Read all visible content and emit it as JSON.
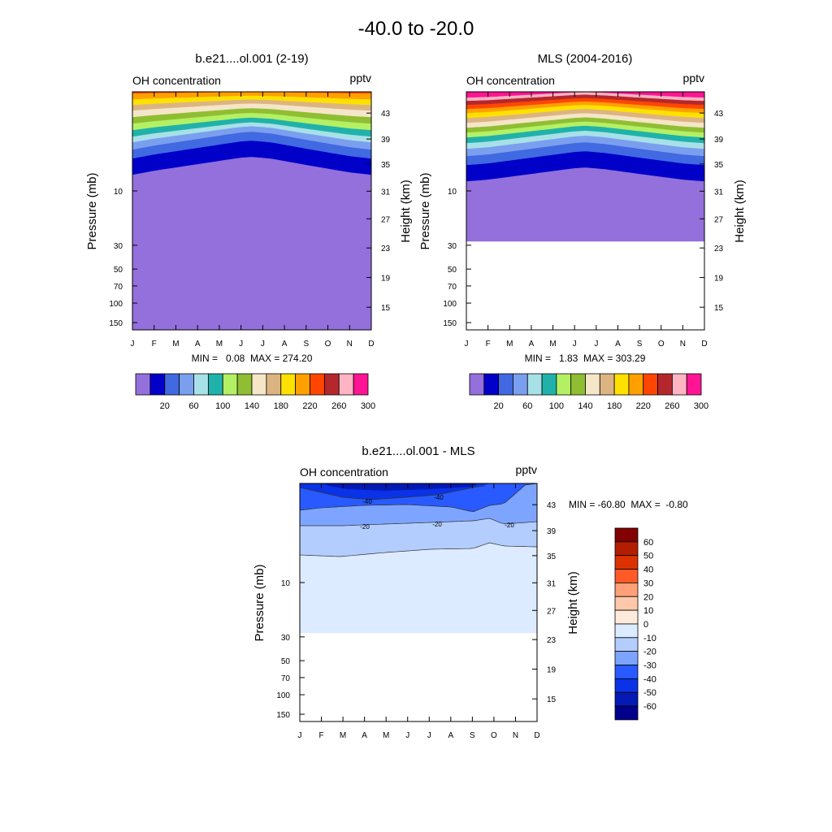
{
  "page": {
    "title": "-40.0 to -20.0"
  },
  "months": [
    "J",
    "F",
    "M",
    "A",
    "M",
    "J",
    "J",
    "A",
    "S",
    "O",
    "N",
    "D"
  ],
  "pressure_ticks": [
    "10",
    "30",
    "50",
    "70",
    "100",
    "150"
  ],
  "height_ticks": [
    "43",
    "39",
    "35",
    "31",
    "27",
    "23",
    "19",
    "15"
  ],
  "panels": {
    "left": {
      "title": "b.e21....ol.001 (2-19)",
      "left_string": "OH concentration",
      "right_string": "pptv",
      "ylabel": "Pressure (mb)",
      "y2label": "Height (km)",
      "stats": "MIN =   0.08  MAX = 274.20"
    },
    "right": {
      "title": "MLS (2004-2016)",
      "left_string": "OH concentration",
      "right_string": "pptv",
      "ylabel": "Pressure (mb)",
      "y2label": "Height (km)",
      "stats": "MIN =   1.83  MAX = 303.29"
    },
    "diff": {
      "title": "b.e21....ol.001 - MLS",
      "left_string": "OH concentration",
      "right_string": "pptv",
      "ylabel": "Pressure (mb)",
      "y2label": "Height (km)",
      "stats": "MIN = -60.80  MAX =  -0.80",
      "contour_labels": [
        "-40",
        "-40",
        "-20",
        "-20",
        "-20"
      ]
    }
  },
  "colorbar_top": {
    "labels": [
      "20",
      "60",
      "100",
      "140",
      "180",
      "220",
      "260",
      "300"
    ],
    "colors": [
      "#9370DB",
      "#0000C8",
      "#4169E1",
      "#7B9FEF",
      "#A8E0E8",
      "#20B2AA",
      "#B4F064",
      "#90BE32",
      "#F5E6C8",
      "#DCB482",
      "#FFE100",
      "#FFA000",
      "#FF4600",
      "#B4282D",
      "#FFB4C3",
      "#FF1493"
    ]
  },
  "colorbar_diff": {
    "labels": [
      "60",
      "50",
      "40",
      "30",
      "20",
      "10",
      "0",
      "-10",
      "-20",
      "-30",
      "-40",
      "-50",
      "-60"
    ],
    "colors": [
      "#820000",
      "#B41E00",
      "#DC3200",
      "#FF5A28",
      "#FFA078",
      "#FFC8AA",
      "#FFEBDC",
      "#DCEBFF",
      "#B4CDFF",
      "#7DA5FF",
      "#285AFF",
      "#0A32E6",
      "#0519B4",
      "#00008C"
    ]
  },
  "chart_data": [
    {
      "type": "heatmap",
      "title": "b.e21....ol.001 (2-19)",
      "xlabel": "",
      "ylabel": "Pressure (mb)",
      "x": [
        "J",
        "F",
        "M",
        "A",
        "M",
        "J",
        "J",
        "A",
        "S",
        "O",
        "N",
        "D"
      ],
      "levels": [
        20,
        40,
        60,
        80,
        100,
        120,
        140,
        160,
        180,
        200,
        220,
        240,
        260,
        280,
        300
      ],
      "min": 0.08,
      "max": 274.2,
      "units": "pptv"
    },
    {
      "type": "heatmap",
      "title": "MLS (2004-2016)",
      "xlabel": "",
      "ylabel": "Pressure (mb)",
      "x": [
        "J",
        "F",
        "M",
        "A",
        "M",
        "J",
        "J",
        "A",
        "S",
        "O",
        "N",
        "D"
      ],
      "levels": [
        20,
        40,
        60,
        80,
        100,
        120,
        140,
        160,
        180,
        200,
        220,
        240,
        260,
        280,
        300
      ],
      "min": 1.83,
      "max": 303.29,
      "units": "pptv"
    },
    {
      "type": "heatmap",
      "title": "b.e21....ol.001 - MLS",
      "xlabel": "",
      "ylabel": "Pressure (mb)",
      "x": [
        "J",
        "F",
        "M",
        "A",
        "M",
        "J",
        "J",
        "A",
        "S",
        "O",
        "N",
        "D"
      ],
      "levels": [
        -60,
        -50,
        -40,
        -30,
        -20,
        -10,
        0,
        10,
        20,
        30,
        40,
        50,
        60
      ],
      "min": -60.8,
      "max": -0.8,
      "units": "pptv"
    }
  ]
}
